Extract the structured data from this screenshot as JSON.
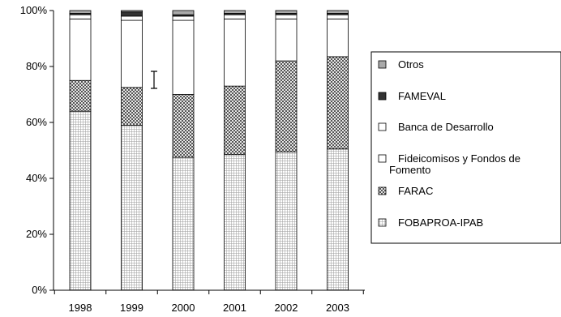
{
  "chart_data": {
    "type": "bar",
    "stacked": true,
    "percent": true,
    "categories": [
      "1998",
      "1999",
      "2000",
      "2001",
      "2002",
      "2003"
    ],
    "series": [
      {
        "name": "FOBAPROA-IPAB",
        "pattern": "grid",
        "values": [
          64,
          59,
          47.5,
          48.5,
          49.5,
          50.5
        ]
      },
      {
        "name": "FARAC",
        "pattern": "checker",
        "values": [
          11,
          13.5,
          22.5,
          24.5,
          32.5,
          33
        ]
      },
      {
        "name": "Fideicomisos y Fondos de Fomento",
        "pattern": "white",
        "values": [
          22,
          24,
          26.5,
          24,
          15,
          13.5
        ]
      },
      {
        "name": "Banca de Desarrollo",
        "pattern": "white",
        "values": [
          1.5,
          1.5,
          1.5,
          1.5,
          1.5,
          1.5
        ]
      },
      {
        "name": "FAMEVAL",
        "pattern": "dark",
        "values": [
          0.5,
          1.5,
          0.5,
          0.5,
          0.5,
          0.5
        ]
      },
      {
        "name": "Otros",
        "pattern": "light",
        "values": [
          1,
          0.5,
          1.5,
          1,
          1,
          1
        ]
      }
    ],
    "legend_order": [
      "Otros",
      "FAMEVAL",
      "Banca de Desarrollo",
      "Fideicomisos y Fondos de Fomento",
      "FARAC",
      "FOBAPROA-IPAB"
    ],
    "ylim": [
      0,
      100
    ],
    "yticks": [
      "0%",
      "20%",
      "40%",
      "60%",
      "80%",
      "100%"
    ],
    "legend_position": "right",
    "grid": false,
    "colors": {
      "dark": "#333333",
      "light": "#aaaaaa",
      "axis": "#000000"
    }
  }
}
